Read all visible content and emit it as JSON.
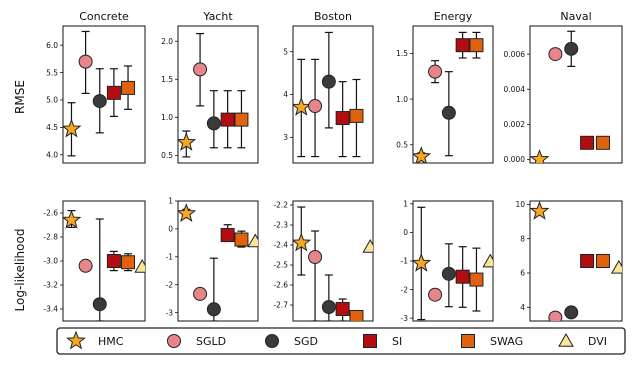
{
  "colors": {
    "HMC": "#f5a623",
    "SGLD": "#e8858a",
    "SGD": "#3a3a3a",
    "SI": "#b30d12",
    "SWAG": "#e0620f",
    "DVI": "#fbe39a"
  },
  "row_labels": [
    "RMSE",
    "Log-likelihood"
  ],
  "legend": [
    {
      "name": "HMC",
      "marker": "star"
    },
    {
      "name": "SGLD",
      "marker": "circle"
    },
    {
      "name": "SGD",
      "marker": "circle"
    },
    {
      "name": "SI",
      "marker": "square"
    },
    {
      "name": "SWAG",
      "marker": "square"
    },
    {
      "name": "DVI",
      "marker": "triangle"
    }
  ],
  "chart_data": [
    {
      "type": "scatter",
      "title": "Concrete",
      "ylabel": "RMSE",
      "ylim": [
        3.85,
        6.35
      ],
      "yticks": [
        "4.0",
        "4.5",
        "5.0",
        "5.5",
        "6.0"
      ],
      "ytick_values": [
        4.0,
        4.5,
        5.0,
        5.5,
        6.0
      ],
      "series": [
        {
          "name": "HMC",
          "x": 1,
          "y": 4.47,
          "lo": 3.98,
          "hi": 4.95
        },
        {
          "name": "SGLD",
          "x": 2,
          "y": 5.7,
          "lo": 5.12,
          "hi": 6.25
        },
        {
          "name": "SGD",
          "x": 3,
          "y": 4.98,
          "lo": 4.4,
          "hi": 5.57
        },
        {
          "name": "SI",
          "x": 4,
          "y": 5.13,
          "lo": 4.7,
          "hi": 5.57
        },
        {
          "name": "SWAG",
          "x": 5,
          "y": 5.22,
          "lo": 4.83,
          "hi": 5.62
        }
      ]
    },
    {
      "type": "scatter",
      "title": "Yacht",
      "ylabel": "",
      "ylim": [
        0.4,
        2.2
      ],
      "yticks": [
        "0.5",
        "1.0",
        "1.5",
        "2.0"
      ],
      "ytick_values": [
        0.5,
        1.0,
        1.5,
        2.0
      ],
      "series": [
        {
          "name": "HMC",
          "x": 1,
          "y": 0.67,
          "lo": 0.48,
          "hi": 0.82
        },
        {
          "name": "SGLD",
          "x": 2,
          "y": 1.63,
          "lo": 1.15,
          "hi": 2.1
        },
        {
          "name": "SGD",
          "x": 3,
          "y": 0.92,
          "lo": 0.6,
          "hi": 1.35
        },
        {
          "name": "SI",
          "x": 4,
          "y": 0.97,
          "lo": 0.6,
          "hi": 1.35
        },
        {
          "name": "SWAG",
          "x": 5,
          "y": 0.97,
          "lo": 0.6,
          "hi": 1.35
        }
      ]
    },
    {
      "type": "scatter",
      "title": "Boston",
      "ylabel": "",
      "ylim": [
        2.4,
        5.6
      ],
      "yticks": [
        "3",
        "4",
        "5"
      ],
      "ytick_values": [
        3,
        4,
        5
      ],
      "series": [
        {
          "name": "HMC",
          "x": 1,
          "y": 3.7,
          "lo": 2.55,
          "hi": 4.82
        },
        {
          "name": "SGLD",
          "x": 2,
          "y": 3.73,
          "lo": 2.55,
          "hi": 4.82
        },
        {
          "name": "SGD",
          "x": 3,
          "y": 4.3,
          "lo": 3.22,
          "hi": 5.45
        },
        {
          "name": "SI",
          "x": 4,
          "y": 3.45,
          "lo": 2.55,
          "hi": 4.3
        },
        {
          "name": "SWAG",
          "x": 5,
          "y": 3.5,
          "lo": 2.55,
          "hi": 4.35
        }
      ]
    },
    {
      "type": "scatter",
      "title": "Energy",
      "ylabel": "",
      "ylim": [
        0.3,
        1.8
      ],
      "yticks": [
        "0.5",
        "1.0",
        "1.5"
      ],
      "ytick_values": [
        0.5,
        1.0,
        1.5
      ],
      "series": [
        {
          "name": "HMC",
          "x": 1,
          "y": 0.37,
          "lo": 0.33,
          "hi": 0.41
        },
        {
          "name": "SGLD",
          "x": 2,
          "y": 1.3,
          "lo": 1.18,
          "hi": 1.42
        },
        {
          "name": "SGD",
          "x": 3,
          "y": 0.85,
          "lo": 0.38,
          "hi": 1.3
        },
        {
          "name": "SI",
          "x": 4,
          "y": 1.59,
          "lo": 1.45,
          "hi": 1.73
        },
        {
          "name": "SWAG",
          "x": 5,
          "y": 1.59,
          "lo": 1.45,
          "hi": 1.73
        }
      ]
    },
    {
      "type": "scatter",
      "title": "Naval",
      "ylabel": "",
      "ylim": [
        -0.0002,
        0.0076
      ],
      "yticks": [
        "0.000",
        "0.002",
        "0.004",
        "0.006"
      ],
      "ytick_values": [
        0.0,
        0.002,
        0.004,
        0.006
      ],
      "series": [
        {
          "name": "HMC",
          "x": 1,
          "y": 0.0,
          "lo": 0.0,
          "hi": 0.0
        },
        {
          "name": "SGLD",
          "x": 2,
          "y": 0.006,
          "lo": 0.006,
          "hi": 0.006
        },
        {
          "name": "SGD",
          "x": 3,
          "y": 0.0063,
          "lo": 0.0053,
          "hi": 0.0073
        },
        {
          "name": "SI",
          "x": 4,
          "y": 0.00095,
          "lo": 0.00095,
          "hi": 0.00095
        },
        {
          "name": "SWAG",
          "x": 5,
          "y": 0.00095,
          "lo": 0.00095,
          "hi": 0.00095
        }
      ]
    },
    {
      "type": "scatter",
      "title": "",
      "ylabel": "Log-likelihood",
      "ylim": [
        -3.5,
        -2.5
      ],
      "yticks": [
        "-2.6",
        "-2.8",
        "-3.0",
        "-3.2",
        "-3.4"
      ],
      "ytick_values": [
        -2.6,
        -2.8,
        -3.0,
        -3.2,
        -3.4
      ],
      "series": [
        {
          "name": "HMC",
          "x": 1,
          "y": -2.66,
          "lo": -2.72,
          "hi": -2.58
        },
        {
          "name": "SGLD",
          "x": 2,
          "y": -3.04,
          "lo": -3.07,
          "hi": -3.01
        },
        {
          "name": "SGD",
          "x": 3,
          "y": -3.36,
          "lo": -3.5,
          "hi": -2.65
        },
        {
          "name": "SI",
          "x": 4,
          "y": -3.0,
          "lo": -3.08,
          "hi": -2.92
        },
        {
          "name": "SWAG",
          "x": 5,
          "y": -3.01,
          "lo": -3.08,
          "hi": -2.94
        },
        {
          "name": "DVI",
          "x": 6,
          "y": -3.05,
          "lo": -3.05,
          "hi": -3.05
        }
      ]
    },
    {
      "type": "scatter",
      "title": "",
      "ylabel": "",
      "ylim": [
        -3.3,
        1.0
      ],
      "yticks": [
        "1",
        "0",
        "-1",
        "-2",
        "-3"
      ],
      "ytick_values": [
        1,
        0,
        -1,
        -2,
        -3
      ],
      "series": [
        {
          "name": "HMC",
          "x": 1,
          "y": 0.55,
          "lo": 0.4,
          "hi": 0.7
        },
        {
          "name": "SGLD",
          "x": 2,
          "y": -2.33,
          "lo": -2.33,
          "hi": -2.33
        },
        {
          "name": "SGD",
          "x": 3,
          "y": -2.88,
          "lo": -3.3,
          "hi": -1.05
        },
        {
          "name": "SI",
          "x": 4,
          "y": -0.22,
          "lo": -0.45,
          "hi": 0.15
        },
        {
          "name": "SWAG",
          "x": 5,
          "y": -0.38,
          "lo": -0.65,
          "hi": -0.08
        },
        {
          "name": "DVI",
          "x": 6,
          "y": -0.45,
          "lo": -0.45,
          "hi": -0.45
        }
      ]
    },
    {
      "type": "scatter",
      "title": "",
      "ylabel": "",
      "ylim": [
        -2.78,
        -2.18
      ],
      "yticks": [
        "-2.2",
        "-2.3",
        "-2.4",
        "-2.5",
        "-2.6",
        "-2.7"
      ],
      "ytick_values": [
        -2.2,
        -2.3,
        -2.4,
        -2.5,
        -2.6,
        -2.7
      ],
      "series": [
        {
          "name": "HMC",
          "x": 1,
          "y": -2.39,
          "lo": -2.55,
          "hi": -2.21
        },
        {
          "name": "SGLD",
          "x": 2,
          "y": -2.46,
          "lo": -2.78,
          "hi": -2.33
        },
        {
          "name": "SGD",
          "x": 3,
          "y": -2.71,
          "lo": -2.78,
          "hi": -2.55
        },
        {
          "name": "SI",
          "x": 4,
          "y": -2.72,
          "lo": -2.78,
          "hi": -2.67
        },
        {
          "name": "SWAG",
          "x": 5,
          "y": -2.76,
          "lo": -2.78,
          "hi": -2.73
        },
        {
          "name": "DVI",
          "x": 6,
          "y": -2.41,
          "lo": -2.41,
          "hi": -2.41
        }
      ]
    },
    {
      "type": "scatter",
      "title": "",
      "ylabel": "",
      "ylim": [
        -3.1,
        1.1
      ],
      "yticks": [
        "1",
        "0",
        "-1",
        "-2",
        "-3"
      ],
      "ytick_values": [
        1,
        0,
        -1,
        -2,
        -3
      ],
      "series": [
        {
          "name": "HMC",
          "x": 1,
          "y": -1.08,
          "lo": -3.05,
          "hi": 0.88
        },
        {
          "name": "SGLD",
          "x": 2,
          "y": -2.18,
          "lo": -2.18,
          "hi": -2.18
        },
        {
          "name": "SGD",
          "x": 3,
          "y": -1.45,
          "lo": -2.6,
          "hi": -0.4
        },
        {
          "name": "SI",
          "x": 4,
          "y": -1.55,
          "lo": -2.62,
          "hi": -0.5
        },
        {
          "name": "SWAG",
          "x": 5,
          "y": -1.65,
          "lo": -2.75,
          "hi": -0.55
        },
        {
          "name": "DVI",
          "x": 6,
          "y": -1.02,
          "lo": -1.02,
          "hi": -1.02
        }
      ]
    },
    {
      "type": "scatter",
      "title": "",
      "ylabel": "",
      "ylim": [
        3.2,
        10.2
      ],
      "yticks": [
        "10",
        "8",
        "6",
        "4"
      ],
      "ytick_values": [
        10,
        8,
        6,
        4
      ],
      "series": [
        {
          "name": "HMC",
          "x": 1,
          "y": 9.6,
          "lo": 9.6,
          "hi": 9.6
        },
        {
          "name": "SGLD",
          "x": 2,
          "y": 3.4,
          "lo": 3.4,
          "hi": 3.4
        },
        {
          "name": "SGD",
          "x": 3,
          "y": 3.7,
          "lo": 3.7,
          "hi": 3.7
        },
        {
          "name": "SI",
          "x": 4,
          "y": 6.7,
          "lo": 6.7,
          "hi": 6.7
        },
        {
          "name": "SWAG",
          "x": 5,
          "y": 6.7,
          "lo": 6.7,
          "hi": 6.7
        },
        {
          "name": "DVI",
          "x": 6,
          "y": 6.3,
          "lo": 6.3,
          "hi": 6.3
        }
      ]
    }
  ]
}
